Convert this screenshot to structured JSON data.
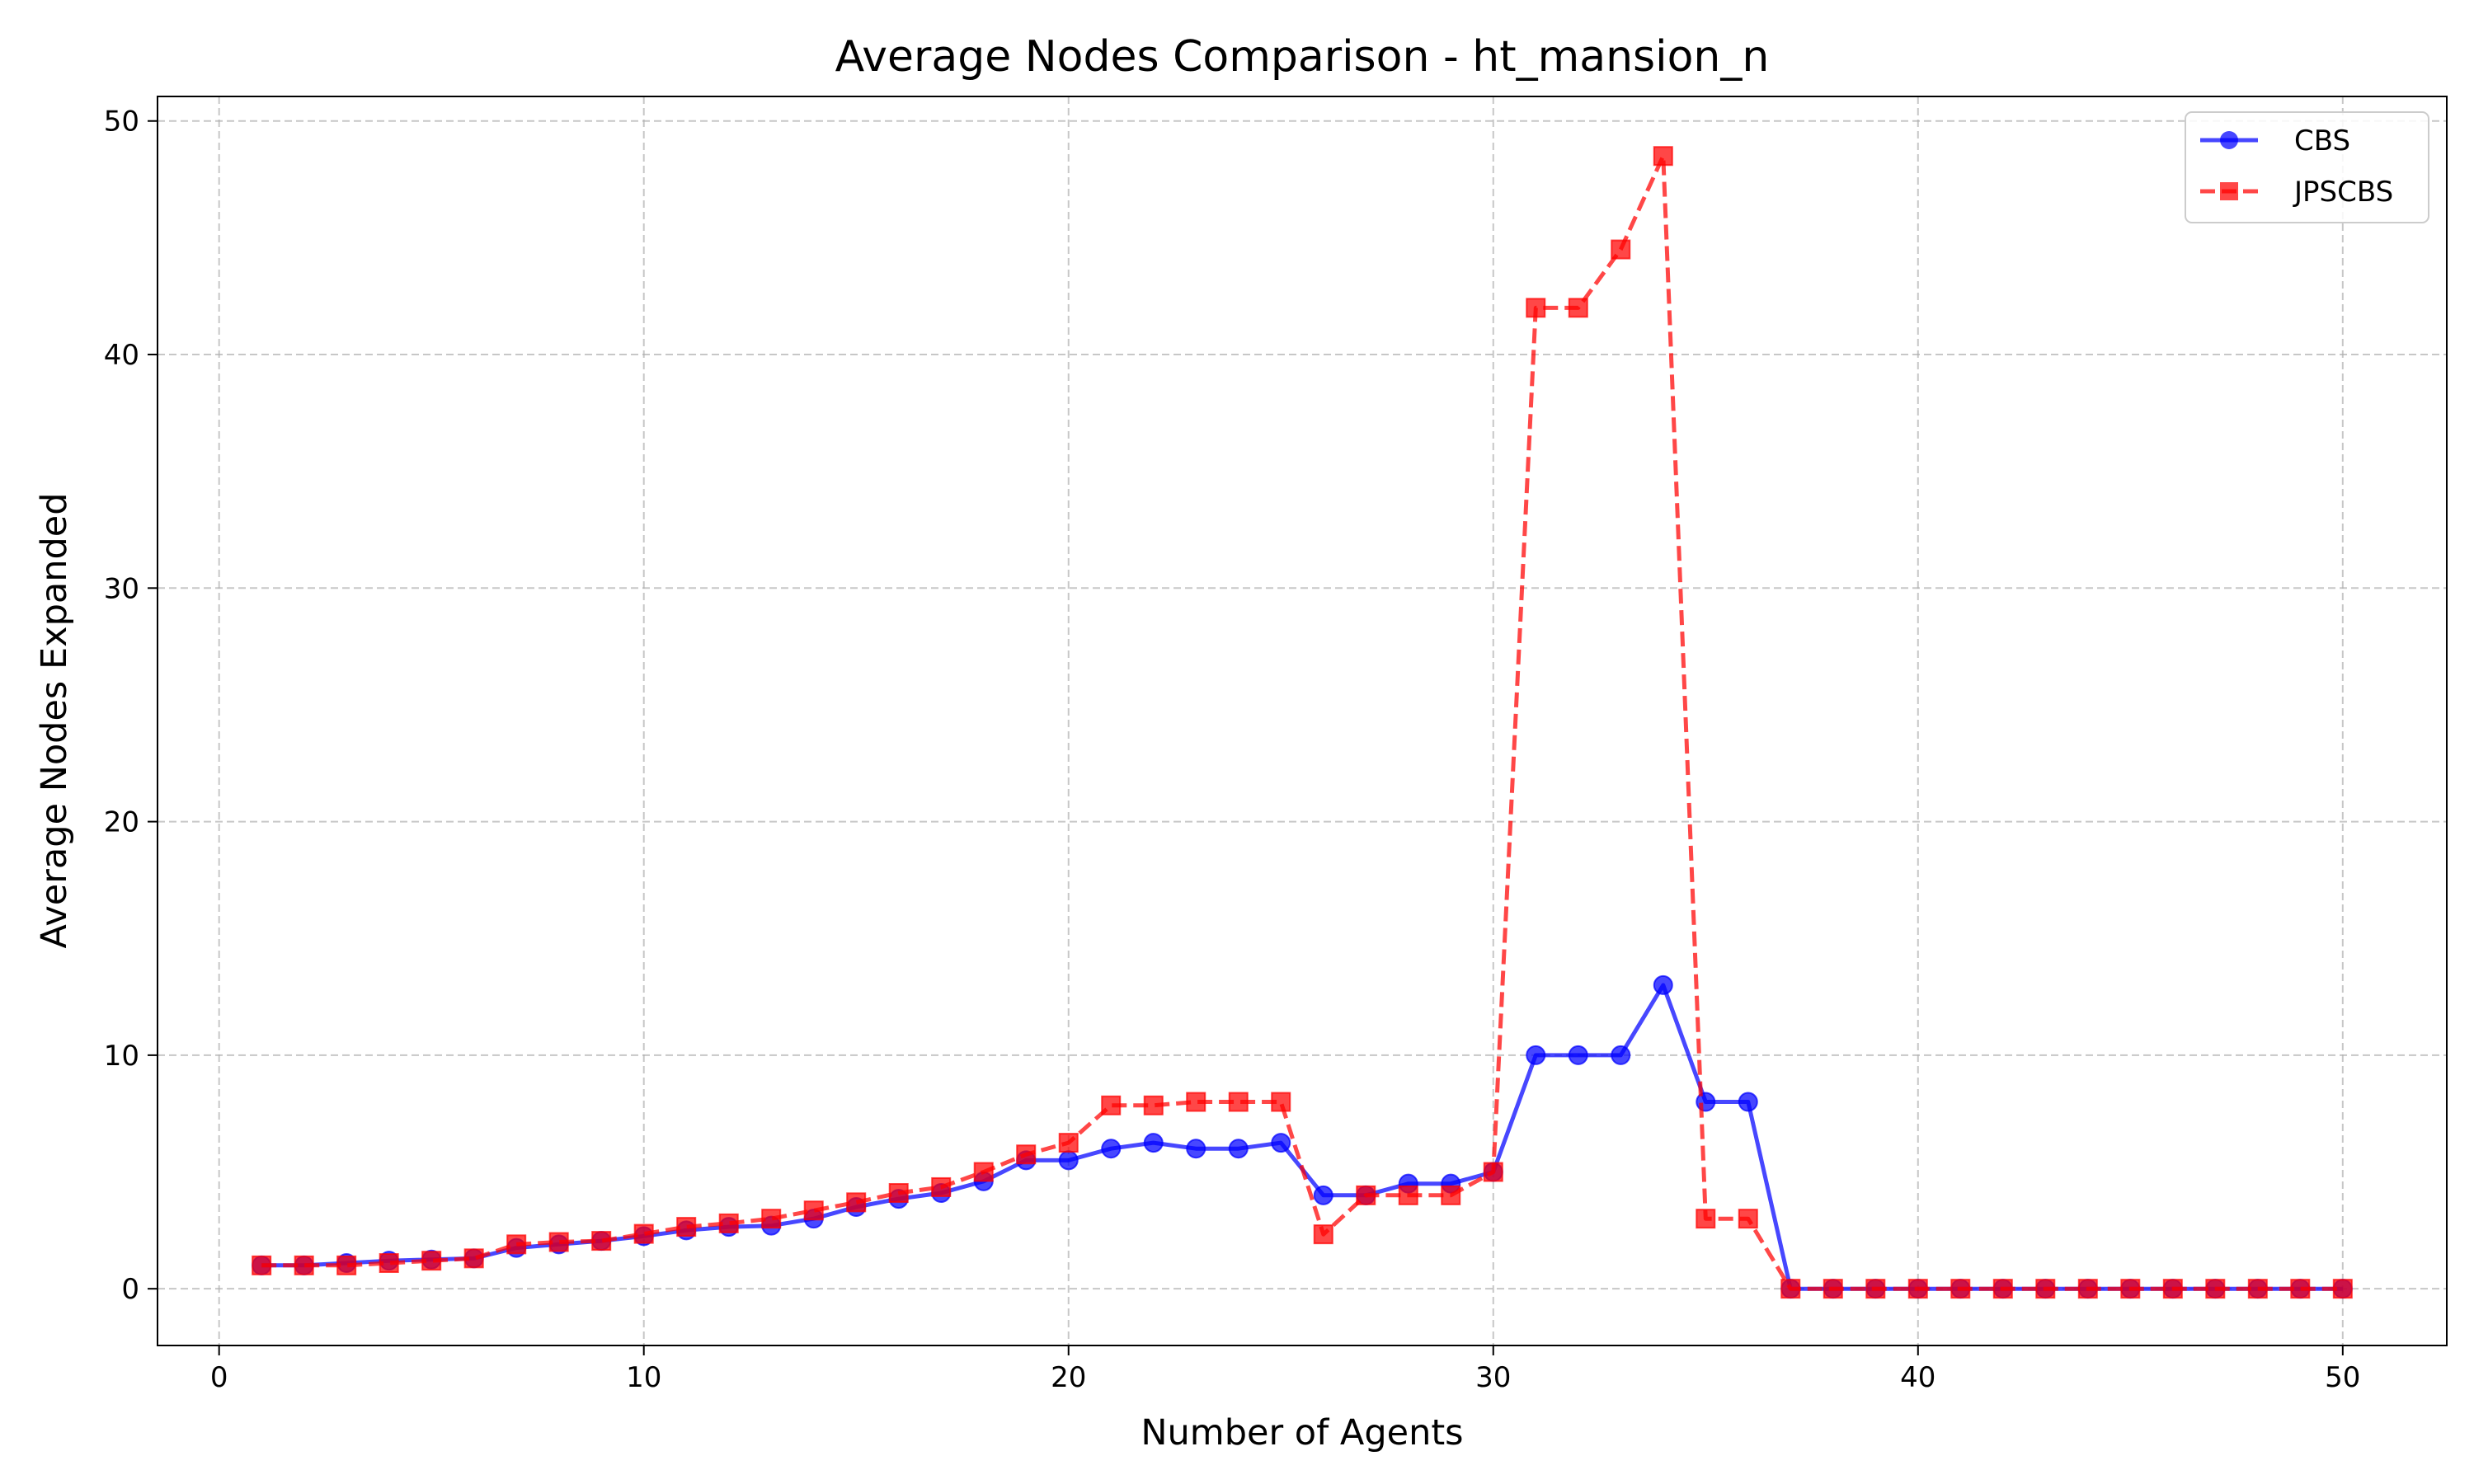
{
  "chart_data": {
    "type": "line",
    "title": "Average Nodes Comparison - ht_mansion_n",
    "xlabel": "Number of Agents",
    "ylabel": "Average Nodes Expanded",
    "xlim": [
      -1.45,
      52.45
    ],
    "ylim": [
      -2.43,
      51.05
    ],
    "xticks": [
      0,
      10,
      20,
      30,
      40,
      50
    ],
    "yticks": [
      0,
      10,
      20,
      30,
      40,
      50
    ],
    "grid": true,
    "legend_position": "top-right",
    "x": [
      1,
      2,
      3,
      4,
      5,
      6,
      7,
      8,
      9,
      10,
      11,
      12,
      13,
      14,
      15,
      16,
      17,
      18,
      19,
      20,
      21,
      22,
      23,
      24,
      25,
      26,
      27,
      28,
      29,
      30,
      31,
      32,
      33,
      34,
      35,
      36,
      37,
      38,
      39,
      40,
      41,
      42,
      43,
      44,
      45,
      46,
      47,
      48,
      49,
      50
    ],
    "series": [
      {
        "name": "CBS",
        "color": "#0000ff",
        "line_style": "solid",
        "marker": "circle",
        "values": [
          1.0,
          1.0,
          1.1,
          1.2,
          1.25,
          1.3,
          1.75,
          1.9,
          2.05,
          2.25,
          2.5,
          2.65,
          2.7,
          3.0,
          3.5,
          3.85,
          4.1,
          4.6,
          5.5,
          5.5,
          6.0,
          6.25,
          6.0,
          6.0,
          6.25,
          4.0,
          4.0,
          4.5,
          4.5,
          5.0,
          10.0,
          10.0,
          10.0,
          13.0,
          8.0,
          8.0,
          0,
          0,
          0,
          0,
          0,
          0,
          0,
          0,
          0,
          0,
          0,
          0,
          0,
          0
        ]
      },
      {
        "name": "JPSCBS",
        "color": "#ff0000",
        "line_style": "dashed",
        "marker": "square",
        "values": [
          1.0,
          1.0,
          1.0,
          1.1,
          1.2,
          1.3,
          1.9,
          2.0,
          2.05,
          2.35,
          2.65,
          2.8,
          3.0,
          3.35,
          3.7,
          4.1,
          4.35,
          5.0,
          5.75,
          6.25,
          7.85,
          7.85,
          8.0,
          8.0,
          8.0,
          2.33,
          4.0,
          4.0,
          4.0,
          5.0,
          42.0,
          42.0,
          44.5,
          48.5,
          3.0,
          3.0,
          0,
          0,
          0,
          0,
          0,
          0,
          0,
          0,
          0,
          0,
          0,
          0,
          0,
          0
        ]
      }
    ]
  }
}
